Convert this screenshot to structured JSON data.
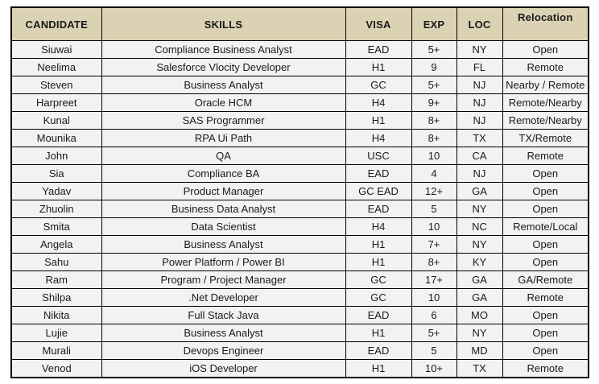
{
  "colors": {
    "header_background": "#dbd2b4",
    "cell_background": "#f2f2f2",
    "border": "#000000",
    "text": "#1a1a1a",
    "page_background": "#ffffff"
  },
  "table": {
    "columns": [
      "CANDIDATE",
      "SKILLS",
      "VISA",
      "EXP",
      "LOC",
      "Relocation"
    ],
    "rows": [
      {
        "candidate": "Siuwai",
        "skills": "Compliance Business Analyst",
        "visa": "EAD",
        "exp": "5+",
        "loc": "NY",
        "relocation": "Open"
      },
      {
        "candidate": "Neelima",
        "skills": "Salesforce Vlocity Developer",
        "visa": "H1",
        "exp": "9",
        "loc": "FL",
        "relocation": "Remote"
      },
      {
        "candidate": "Steven",
        "skills": "Business Analyst",
        "visa": "GC",
        "exp": "5+",
        "loc": "NJ",
        "relocation": "Nearby / Remote"
      },
      {
        "candidate": "Harpreet",
        "skills": "Oracle HCM",
        "visa": "H4",
        "exp": "9+",
        "loc": "NJ",
        "relocation": "Remote/Nearby"
      },
      {
        "candidate": "Kunal",
        "skills": "SAS Programmer",
        "visa": "H1",
        "exp": "8+",
        "loc": "NJ",
        "relocation": "Remote/Nearby"
      },
      {
        "candidate": "Mounika",
        "skills": "RPA Ui Path",
        "visa": "H4",
        "exp": "8+",
        "loc": "TX",
        "relocation": "TX/Remote"
      },
      {
        "candidate": "John",
        "skills": "QA",
        "visa": "USC",
        "exp": "10",
        "loc": "CA",
        "relocation": "Remote"
      },
      {
        "candidate": "Sia",
        "skills": "Compliance BA",
        "visa": "EAD",
        "exp": "4",
        "loc": "NJ",
        "relocation": "Open"
      },
      {
        "candidate": "Yadav",
        "skills": "Product Manager",
        "visa": "GC EAD",
        "exp": "12+",
        "loc": "GA",
        "relocation": "Open"
      },
      {
        "candidate": "Zhuolin",
        "skills": "Business Data Analyst",
        "visa": "EAD",
        "exp": "5",
        "loc": "NY",
        "relocation": "Open"
      },
      {
        "candidate": "Smita",
        "skills": "Data Scientist",
        "visa": "H4",
        "exp": "10",
        "loc": "NC",
        "relocation": "Remote/Local"
      },
      {
        "candidate": "Angela",
        "skills": "Business Analyst",
        "visa": "H1",
        "exp": "7+",
        "loc": "NY",
        "relocation": "Open"
      },
      {
        "candidate": "Sahu",
        "skills": "Power Platform / Power BI",
        "visa": "H1",
        "exp": "8+",
        "loc": "KY",
        "relocation": "Open"
      },
      {
        "candidate": "Ram",
        "skills": "Program / Project Manager",
        "visa": "GC",
        "exp": "17+",
        "loc": "GA",
        "relocation": "GA/Remote"
      },
      {
        "candidate": "Shilpa",
        "skills": ".Net Developer",
        "visa": "GC",
        "exp": "10",
        "loc": "GA",
        "relocation": "Remote"
      },
      {
        "candidate": "Nikita",
        "skills": "Full Stack Java",
        "visa": "EAD",
        "exp": "6",
        "loc": "MO",
        "relocation": "Open"
      },
      {
        "candidate": "Lujie",
        "skills": "Business Analyst",
        "visa": "H1",
        "exp": "5+",
        "loc": "NY",
        "relocation": "Open"
      },
      {
        "candidate": "Murali",
        "skills": "Devops Engineer",
        "visa": "EAD",
        "exp": "5",
        "loc": "MD",
        "relocation": "Open"
      },
      {
        "candidate": "Venod",
        "skills": "iOS Developer",
        "visa": "H1",
        "exp": "10+",
        "loc": "TX",
        "relocation": "Remote"
      }
    ]
  }
}
